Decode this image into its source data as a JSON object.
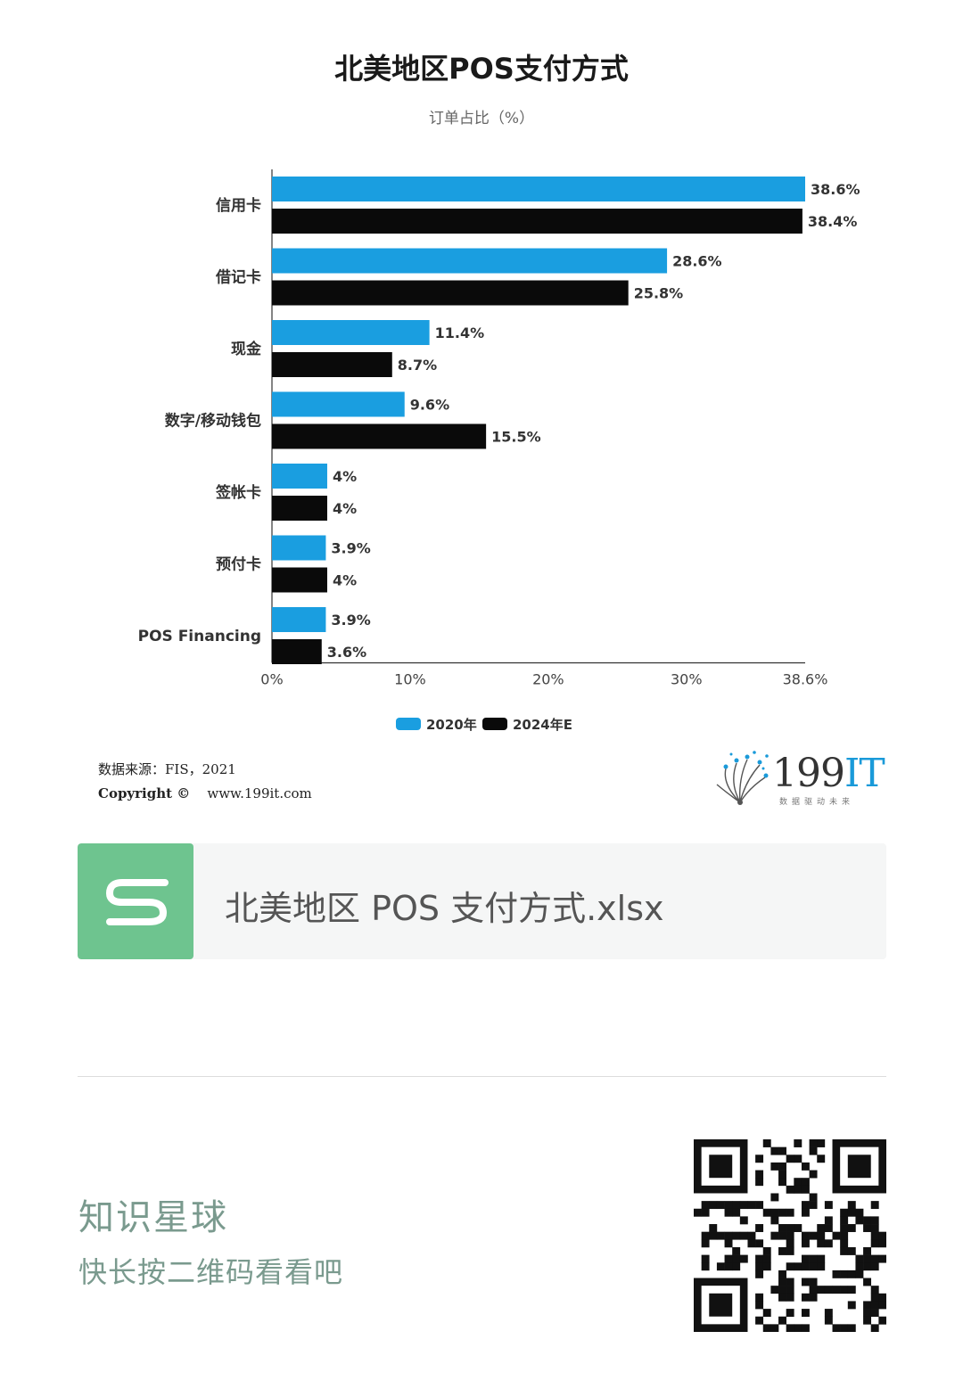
{
  "chart_data": {
    "type": "bar",
    "orientation": "horizontal",
    "title": "北美地区POS支付方式",
    "subtitle": "订单占比（%）",
    "categories": [
      "信用卡",
      "借记卡",
      "现金",
      "数字/移动钱包",
      "签帐卡",
      "预付卡",
      "POS Financing"
    ],
    "series": [
      {
        "name": "2020年",
        "color": "#1a9ee0",
        "values": [
          38.6,
          28.6,
          11.4,
          9.6,
          4,
          3.9,
          3.9
        ],
        "labels": [
          "38.6%",
          "28.6%",
          "11.4%",
          "9.6%",
          "4%",
          "3.9%",
          "3.9%"
        ]
      },
      {
        "name": "2024年E",
        "color": "#0a0a0a",
        "values": [
          38.4,
          25.8,
          8.7,
          15.5,
          4,
          4,
          3.6
        ],
        "labels": [
          "38.4%",
          "25.8%",
          "8.7%",
          "15.5%",
          "4%",
          "4%",
          "3.6%"
        ]
      }
    ],
    "xlim": [
      0,
      38.6
    ],
    "xticks": [
      0,
      10,
      20,
      30,
      38.6
    ],
    "xtick_labels": [
      "0%",
      "10%",
      "20%",
      "30%",
      "38.6%"
    ],
    "grid": false,
    "legend": "bottom-center"
  },
  "source": {
    "label": "数据来源：FIS，2021",
    "copyright": "Copyright ©",
    "url": "www.199it.com"
  },
  "logo": {
    "text_num": "199",
    "text_it": "IT",
    "tagline": "数据驱动未来"
  },
  "file": {
    "icon": "spreadsheet-s-icon",
    "icon_color": "#6ec48f",
    "name": "北美地区 POS 支付方式.xlsx"
  },
  "planet": {
    "title": "知识星球",
    "subtitle": "快长按二维码看看吧"
  }
}
